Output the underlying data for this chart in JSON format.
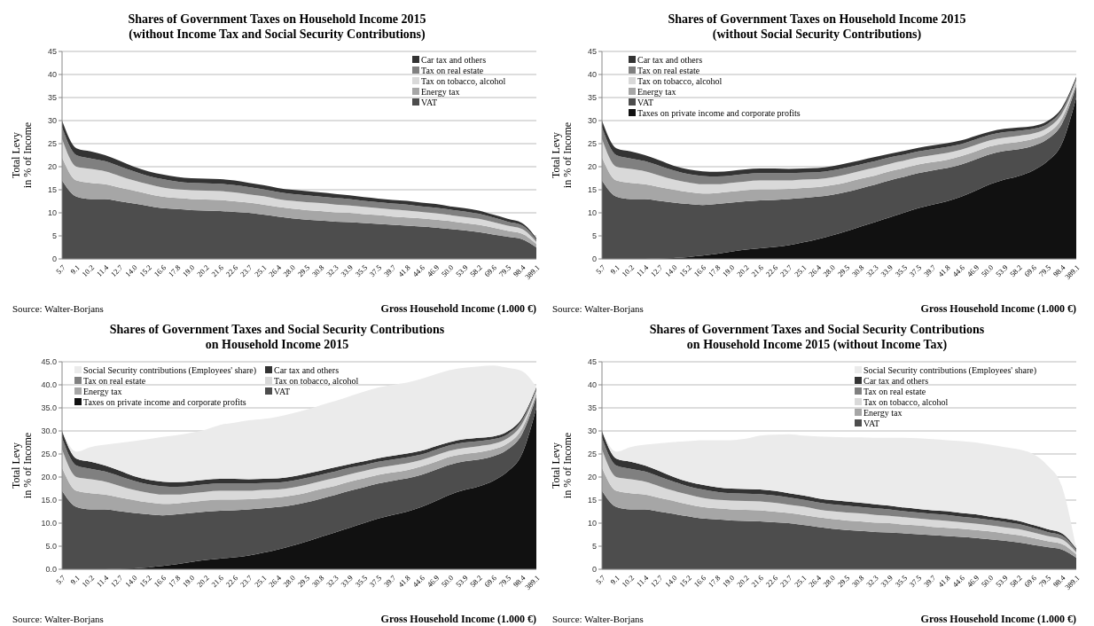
{
  "chart_data": [
    {
      "type": "area",
      "stacked": true,
      "title": "Shares of Government Taxes on Household Income 2015\n(without Income Tax and Social Security Contributions)",
      "xlabel": "Gross Household Income (1.000 €)",
      "ylabel": "Total Levy\nin % of Income",
      "annotations": [
        "Source: Walter-Borjans"
      ],
      "legend": "top right",
      "grid": "y",
      "ylim": [
        0,
        45
      ],
      "yticks": [
        0,
        5,
        10,
        15,
        20,
        25,
        30,
        35,
        40,
        45
      ],
      "categories": [
        "5.7",
        "9.1",
        "10.2",
        "11.4",
        "12.7",
        "14.0",
        "15.2",
        "16.6",
        "17.8",
        "19.0",
        "20.2",
        "21.6",
        "22.6",
        "23.7",
        "25.1",
        "26.4",
        "28.0",
        "29.5",
        "30.8",
        "32.3",
        "33.9",
        "35.5",
        "37.5",
        "39.7",
        "41.8",
        "44.6",
        "46.9",
        "50.0",
        "53.9",
        "58.2",
        "69.6",
        "79.5",
        "98.4",
        "389.1"
      ],
      "series": [
        {
          "name": "VAT",
          "color": "#4d4d4d",
          "values": [
            17,
            13.5,
            13,
            13,
            12.5,
            12,
            11.5,
            11,
            10.8,
            10.6,
            10.5,
            10.4,
            10.2,
            10,
            9.6,
            9.2,
            8.8,
            8.5,
            8.3,
            8.1,
            8,
            7.8,
            7.6,
            7.4,
            7.2,
            7,
            6.8,
            6.5,
            6.2,
            5.8,
            5.3,
            4.8,
            4.3,
            2.5
          ]
        },
        {
          "name": "Energy tax",
          "color": "#a6a6a6",
          "values": [
            5,
            3.5,
            3.5,
            3.2,
            3,
            2.8,
            2.6,
            2.5,
            2.4,
            2.4,
            2.4,
            2.4,
            2.3,
            2.2,
            2.2,
            2.1,
            2.1,
            2.1,
            2.1,
            2,
            2,
            1.9,
            1.9,
            1.8,
            1.8,
            1.8,
            1.7,
            1.7,
            1.6,
            1.6,
            1.5,
            1.3,
            1.2,
            0.7
          ]
        },
        {
          "name": "Tax on tobacco, alcohol",
          "color": "#d9d9d9",
          "values": [
            4,
            3,
            3,
            2.8,
            2.5,
            2.2,
            2.1,
            2,
            1.9,
            1.9,
            1.9,
            1.9,
            1.9,
            1.8,
            1.8,
            1.7,
            1.7,
            1.7,
            1.7,
            1.7,
            1.6,
            1.6,
            1.5,
            1.5,
            1.5,
            1.4,
            1.4,
            1.3,
            1.3,
            1.3,
            1.2,
            1.1,
            1,
            0.5
          ]
        },
        {
          "name": "Tax on real estate",
          "color": "#808080",
          "values": [
            2.5,
            2.5,
            2.3,
            2.2,
            2.1,
            2,
            1.8,
            1.8,
            1.7,
            1.6,
            1.6,
            1.6,
            1.6,
            1.6,
            1.5,
            1.5,
            1.5,
            1.5,
            1.4,
            1.4,
            1.4,
            1.3,
            1.3,
            1.3,
            1.3,
            1.2,
            1.2,
            1.2,
            1.2,
            1.1,
            1,
            0.9,
            0.8,
            0.5
          ]
        },
        {
          "name": "Car tax and others",
          "color": "#333333",
          "values": [
            1.5,
            1.5,
            1.5,
            1.3,
            1.2,
            1,
            1,
            1,
            1,
            1,
            1,
            1,
            1,
            0.9,
            0.9,
            0.9,
            0.9,
            0.9,
            0.9,
            0.9,
            0.8,
            0.8,
            0.8,
            0.8,
            0.8,
            0.8,
            0.8,
            0.7,
            0.7,
            0.7,
            0.6,
            0.6,
            0.5,
            0.3
          ]
        }
      ]
    },
    {
      "type": "area",
      "stacked": true,
      "title": "Shares of Government Taxes on Household Income 2015\n(without Social Security Contributions)",
      "xlabel": "Gross Household Income (1.000 €)",
      "ylabel": "Total Levy\nin % of Income",
      "annotations": [
        "Source: Walter-Borjans"
      ],
      "legend": "top left",
      "grid": "y",
      "ylim": [
        0,
        45
      ],
      "yticks": [
        0,
        5,
        10,
        15,
        20,
        25,
        30,
        35,
        40,
        45
      ],
      "categories": [
        "5.7",
        "9.1",
        "10.2",
        "11.4",
        "12.7",
        "14.0",
        "15.2",
        "16.6",
        "17.8",
        "19.0",
        "20.2",
        "21.6",
        "22.6",
        "23.7",
        "25.1",
        "26.4",
        "28.0",
        "29.5",
        "30.8",
        "32.3",
        "33.9",
        "35.5",
        "37.5",
        "39.7",
        "41.8",
        "44.6",
        "46.9",
        "50.0",
        "53.9",
        "58.2",
        "69.6",
        "79.5",
        "98.4",
        "389.1"
      ],
      "series": [
        {
          "name": "Taxes on private income and corporate profits",
          "color": "#111111",
          "values": [
            0,
            0,
            0,
            0,
            0.1,
            0.2,
            0.4,
            0.7,
            1.1,
            1.6,
            2,
            2.3,
            2.6,
            3,
            3.6,
            4.3,
            5.1,
            6,
            7,
            8,
            9,
            10,
            11,
            11.8,
            12.5,
            13.5,
            14.8,
            16.2,
            17.2,
            18,
            19.2,
            21.2,
            25,
            35
          ]
        },
        {
          "name": "VAT",
          "color": "#4d4d4d",
          "values": [
            17,
            13.5,
            13,
            13,
            12.5,
            12,
            11.5,
            11,
            10.8,
            10.6,
            10.5,
            10.4,
            10.2,
            10,
            9.6,
            9.2,
            8.8,
            8.5,
            8.3,
            8.1,
            8,
            7.8,
            7.6,
            7.4,
            7.2,
            7,
            6.8,
            6.5,
            6.2,
            5.8,
            5.3,
            4.8,
            4.3,
            2.5
          ]
        },
        {
          "name": "Energy tax",
          "color": "#a6a6a6",
          "values": [
            5,
            3.5,
            3.5,
            3.2,
            3,
            2.8,
            2.6,
            2.5,
            2.4,
            2.4,
            2.4,
            2.4,
            2.3,
            2.2,
            2.2,
            2.1,
            2.1,
            2.1,
            2.1,
            2,
            2,
            1.9,
            1.9,
            1.8,
            1.8,
            1.8,
            1.7,
            1.7,
            1.6,
            1.6,
            1.5,
            1.3,
            1.2,
            0.7
          ]
        },
        {
          "name": "Tax on tobacco, alcohol",
          "color": "#d9d9d9",
          "values": [
            4,
            3,
            3,
            2.8,
            2.5,
            2.2,
            2.1,
            2,
            1.9,
            1.9,
            1.9,
            1.9,
            1.9,
            1.8,
            1.8,
            1.7,
            1.7,
            1.7,
            1.7,
            1.7,
            1.6,
            1.6,
            1.5,
            1.5,
            1.5,
            1.4,
            1.4,
            1.3,
            1.3,
            1.3,
            1.2,
            1.1,
            1,
            0.5
          ]
        },
        {
          "name": "Tax on real estate",
          "color": "#808080",
          "values": [
            2.5,
            2.5,
            2.3,
            2.2,
            2.1,
            2,
            1.8,
            1.8,
            1.7,
            1.6,
            1.6,
            1.6,
            1.6,
            1.6,
            1.5,
            1.5,
            1.5,
            1.5,
            1.4,
            1.4,
            1.4,
            1.3,
            1.3,
            1.3,
            1.3,
            1.2,
            1.2,
            1.2,
            1.2,
            1.1,
            1,
            0.9,
            0.8,
            0.5
          ]
        },
        {
          "name": "Car tax and others",
          "color": "#333333",
          "values": [
            1.5,
            1.5,
            1.5,
            1.3,
            1.2,
            1,
            1,
            1,
            1,
            1,
            1,
            1,
            1,
            0.9,
            0.9,
            0.9,
            0.9,
            0.9,
            0.9,
            0.9,
            0.8,
            0.8,
            0.8,
            0.8,
            0.8,
            0.8,
            0.8,
            0.7,
            0.7,
            0.7,
            0.6,
            0.6,
            0.5,
            0.3
          ]
        }
      ]
    },
    {
      "type": "area",
      "stacked": true,
      "title": "Shares of Government Taxes and Social Security Contributions\non Household Income 2015",
      "xlabel": "Gross Household Income (1.000 €)",
      "ylabel": "Total Levy\nin % of Income",
      "annotations": [
        "Source: Walter-Borjans"
      ],
      "legend": "top",
      "grid": "y",
      "ylim": [
        0,
        45
      ],
      "yticks": [
        {
          "value": 0,
          "label": "0.0"
        },
        {
          "value": 5,
          "label": "5.0"
        },
        {
          "value": 10,
          "label": "10.0"
        },
        {
          "value": 15,
          "label": "15.0"
        },
        {
          "value": 20,
          "label": "20.0"
        },
        {
          "value": 25,
          "label": "25.0"
        },
        {
          "value": 30,
          "label": "30.0"
        },
        {
          "value": 35,
          "label": "35.0"
        },
        {
          "value": 40,
          "label": "40.0"
        },
        {
          "value": 45,
          "label": "45.0"
        }
      ],
      "categories": [
        "5.7",
        "9.1",
        "10.2",
        "11.4",
        "12.7",
        "14.0",
        "15.2",
        "16.6",
        "17.8",
        "19.0",
        "20.2",
        "21.6",
        "22.6",
        "23.7",
        "25.1",
        "26.4",
        "28.0",
        "29.5",
        "30.8",
        "32.3",
        "33.9",
        "35.5",
        "37.5",
        "39.7",
        "41.8",
        "44.6",
        "46.9",
        "50.0",
        "53.9",
        "58.2",
        "69.6",
        "79.5",
        "98.4",
        "389.1"
      ],
      "series": [
        {
          "name": "Taxes on private income and corporate profits",
          "color": "#111111",
          "values": [
            0,
            0,
            0,
            0,
            0.1,
            0.2,
            0.4,
            0.7,
            1.1,
            1.6,
            2,
            2.3,
            2.6,
            3,
            3.6,
            4.3,
            5.1,
            6,
            7,
            8,
            9,
            10,
            11,
            11.8,
            12.5,
            13.5,
            14.8,
            16.2,
            17.2,
            18,
            19.2,
            21.2,
            25,
            35
          ]
        },
        {
          "name": "VAT",
          "color": "#4d4d4d",
          "values": [
            17,
            13.5,
            13,
            13,
            12.5,
            12,
            11.5,
            11,
            10.8,
            10.6,
            10.5,
            10.4,
            10.2,
            10,
            9.6,
            9.2,
            8.8,
            8.5,
            8.3,
            8.1,
            8,
            7.8,
            7.6,
            7.4,
            7.2,
            7,
            6.8,
            6.5,
            6.2,
            5.8,
            5.3,
            4.8,
            4.3,
            2.5
          ]
        },
        {
          "name": "Energy tax",
          "color": "#a6a6a6",
          "values": [
            5,
            3.5,
            3.5,
            3.2,
            3,
            2.8,
            2.6,
            2.5,
            2.4,
            2.4,
            2.4,
            2.4,
            2.3,
            2.2,
            2.2,
            2.1,
            2.1,
            2.1,
            2.1,
            2,
            2,
            1.9,
            1.9,
            1.8,
            1.8,
            1.8,
            1.7,
            1.7,
            1.6,
            1.6,
            1.5,
            1.3,
            1.2,
            0.7
          ]
        },
        {
          "name": "Tax on tobacco, alcohol",
          "color": "#d9d9d9",
          "values": [
            4,
            3,
            3,
            2.8,
            2.5,
            2.2,
            2.1,
            2,
            1.9,
            1.9,
            1.9,
            1.9,
            1.9,
            1.8,
            1.8,
            1.7,
            1.7,
            1.7,
            1.7,
            1.7,
            1.6,
            1.6,
            1.5,
            1.5,
            1.5,
            1.4,
            1.4,
            1.3,
            1.3,
            1.3,
            1.2,
            1.1,
            1,
            0.5
          ]
        },
        {
          "name": "Tax on real estate",
          "color": "#808080",
          "values": [
            2.5,
            2.5,
            2.3,
            2.2,
            2.1,
            2,
            1.8,
            1.8,
            1.7,
            1.6,
            1.6,
            1.6,
            1.6,
            1.6,
            1.5,
            1.5,
            1.5,
            1.5,
            1.4,
            1.4,
            1.4,
            1.3,
            1.3,
            1.3,
            1.3,
            1.2,
            1.2,
            1.2,
            1.2,
            1.1,
            1,
            0.9,
            0.8,
            0.5
          ]
        },
        {
          "name": "Car tax and others",
          "color": "#333333",
          "values": [
            1.5,
            1.5,
            1.5,
            1.3,
            1.2,
            1,
            1,
            1,
            1,
            1,
            1,
            1,
            1,
            0.9,
            0.9,
            0.9,
            0.9,
            0.9,
            0.9,
            0.9,
            0.8,
            0.8,
            0.8,
            0.8,
            0.8,
            0.8,
            0.8,
            0.7,
            0.7,
            0.7,
            0.6,
            0.6,
            0.5,
            0.3
          ]
        },
        {
          "name": "Social Security contributions (Employees' share)",
          "color": "#ebebeb",
          "values": [
            0,
            1.5,
            3.2,
            4.5,
            6,
            7.6,
            8.8,
            9.7,
            10.2,
            10.5,
            10.9,
            11.7,
            12.2,
            12.8,
            13,
            13.4,
            13.7,
            13.9,
            14.2,
            14.4,
            14.7,
            15.1,
            15.3,
            15.4,
            15.4,
            15.6,
            15.6,
            15.6,
            15.5,
            15.5,
            15.4,
            13.8,
            10.2,
            0
          ]
        }
      ]
    },
    {
      "type": "area",
      "stacked": true,
      "title": "Shares of Government Taxes and Social Security Contributions\non Household Income 2015 (without Income Tax)",
      "xlabel": "Gross Household Income (1.000 €)",
      "ylabel": "Total Levy\nin % of Income",
      "annotations": [
        "Source: Walter-Borjans"
      ],
      "legend": "top right",
      "grid": "y",
      "ylim": [
        0,
        45
      ],
      "yticks": [
        0,
        5,
        10,
        15,
        20,
        25,
        30,
        35,
        40,
        45
      ],
      "categories": [
        "5.7",
        "9.1",
        "10.2",
        "11.4",
        "12.7",
        "14.0",
        "15.2",
        "16.6",
        "17.8",
        "19.0",
        "20.2",
        "21.6",
        "22.6",
        "23.7",
        "25.1",
        "26.4",
        "28.0",
        "29.5",
        "30.8",
        "32.3",
        "33.9",
        "35.5",
        "37.5",
        "39.7",
        "41.8",
        "44.6",
        "46.9",
        "50.0",
        "53.9",
        "58.2",
        "69.6",
        "79.5",
        "98.4",
        "389.1"
      ],
      "series": [
        {
          "name": "VAT",
          "color": "#4d4d4d",
          "values": [
            17,
            13.5,
            13,
            13,
            12.5,
            12,
            11.5,
            11,
            10.8,
            10.6,
            10.5,
            10.4,
            10.2,
            10,
            9.6,
            9.2,
            8.8,
            8.5,
            8.3,
            8.1,
            8,
            7.8,
            7.6,
            7.4,
            7.2,
            7,
            6.8,
            6.5,
            6.2,
            5.8,
            5.3,
            4.8,
            4.3,
            2.5
          ]
        },
        {
          "name": "Energy tax",
          "color": "#a6a6a6",
          "values": [
            5,
            3.5,
            3.5,
            3.2,
            3,
            2.8,
            2.6,
            2.5,
            2.4,
            2.4,
            2.4,
            2.4,
            2.3,
            2.2,
            2.2,
            2.1,
            2.1,
            2.1,
            2.1,
            2,
            2,
            1.9,
            1.9,
            1.8,
            1.8,
            1.8,
            1.7,
            1.7,
            1.6,
            1.6,
            1.5,
            1.3,
            1.2,
            0.7
          ]
        },
        {
          "name": "Tax on tobacco, alcohol",
          "color": "#d9d9d9",
          "values": [
            4,
            3,
            3,
            2.8,
            2.5,
            2.2,
            2.1,
            2,
            1.9,
            1.9,
            1.9,
            1.9,
            1.9,
            1.8,
            1.8,
            1.7,
            1.7,
            1.7,
            1.7,
            1.7,
            1.6,
            1.6,
            1.5,
            1.5,
            1.5,
            1.4,
            1.4,
            1.3,
            1.3,
            1.3,
            1.2,
            1.1,
            1,
            0.5
          ]
        },
        {
          "name": "Tax on real estate",
          "color": "#808080",
          "values": [
            2.5,
            2.5,
            2.3,
            2.2,
            2.1,
            2,
            1.8,
            1.8,
            1.7,
            1.6,
            1.6,
            1.6,
            1.6,
            1.6,
            1.5,
            1.5,
            1.5,
            1.5,
            1.4,
            1.4,
            1.4,
            1.3,
            1.3,
            1.3,
            1.3,
            1.2,
            1.2,
            1.2,
            1.2,
            1.1,
            1,
            0.9,
            0.8,
            0.5
          ]
        },
        {
          "name": "Car tax and others",
          "color": "#333333",
          "values": [
            1.5,
            1.5,
            1.5,
            1.3,
            1.2,
            1,
            1,
            1,
            1,
            1,
            1,
            1,
            1,
            0.9,
            0.9,
            0.9,
            0.9,
            0.9,
            0.9,
            0.9,
            0.8,
            0.8,
            0.8,
            0.8,
            0.8,
            0.8,
            0.8,
            0.7,
            0.7,
            0.7,
            0.6,
            0.6,
            0.5,
            0.3
          ]
        },
        {
          "name": "Social Security contributions (Employees' share)",
          "color": "#ebebeb",
          "values": [
            0,
            1.5,
            3.2,
            4.5,
            6,
            7.6,
            8.8,
            9.7,
            10.2,
            10.5,
            10.9,
            11.7,
            12.2,
            12.8,
            13,
            13.4,
            13.7,
            13.9,
            14.2,
            14.4,
            14.7,
            15.1,
            15.3,
            15.4,
            15.4,
            15.6,
            15.6,
            15.6,
            15.5,
            15.5,
            15.4,
            13.8,
            10.2,
            0
          ]
        }
      ]
    }
  ]
}
